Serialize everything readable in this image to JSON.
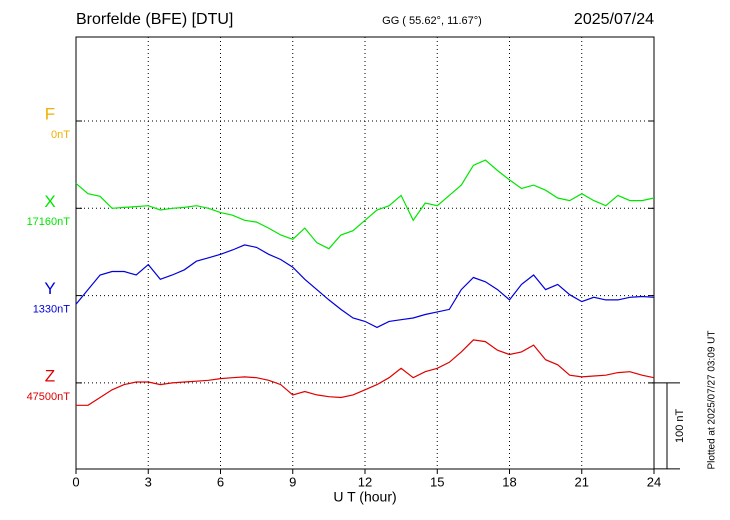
{
  "chart_data": {
    "type": "line",
    "title": "Brorfelde (BFE)  [DTU]",
    "subtitle": "GG ( 55.62°,  11.67°)",
    "date": "2025/07/24",
    "xlabel": "U T (hour)",
    "footnote": "Plotted at 2025/07/27 03:09 UT",
    "scale": {
      "value": 100,
      "label": "100 nT"
    },
    "grid": true,
    "xlim": [
      0,
      24
    ],
    "xticks": [
      0,
      3,
      6,
      9,
      12,
      15,
      18,
      21,
      24
    ],
    "x": [
      0,
      0.5,
      1,
      1.5,
      2,
      2.5,
      3,
      3.5,
      4,
      4.5,
      5,
      5.5,
      6,
      6.5,
      7,
      7.5,
      8,
      8.5,
      9,
      9.5,
      10,
      10.5,
      11,
      11.5,
      12,
      12.5,
      13,
      13.5,
      14,
      14.5,
      15,
      15.5,
      16,
      16.5,
      17,
      17.5,
      18,
      18.5,
      19,
      19.5,
      20,
      20.5,
      21,
      21.5,
      22,
      22.5,
      23,
      23.5,
      24
    ],
    "series": [
      {
        "name": "F",
        "color": "#f0b000",
        "baseline": {
          "value": 0,
          "label": "0nT"
        }
      },
      {
        "name": "X",
        "color": "#00e600",
        "baseline": {
          "value": 17160,
          "label": "17160nT"
        },
        "values": [
          17189,
          17177,
          17174,
          17160,
          17161,
          17162,
          17163,
          17158,
          17160,
          17161,
          17163,
          17160,
          17155,
          17152,
          17146,
          17144,
          17137,
          17129,
          17124,
          17137,
          17120,
          17113,
          17129,
          17134,
          17146,
          17158,
          17163,
          17175,
          17146,
          17166,
          17163,
          17175,
          17187,
          17210,
          17216,
          17204,
          17193,
          17183,
          17187,
          17181,
          17172,
          17169,
          17177,
          17169,
          17163,
          17175,
          17169,
          17169,
          17172
        ]
      },
      {
        "name": "Y",
        "color": "#0000dd",
        "baseline": {
          "value": 1330,
          "label": "1330nT"
        },
        "values": [
          1320,
          1337,
          1354,
          1358,
          1358,
          1354,
          1366,
          1349,
          1354,
          1360,
          1370,
          1374,
          1378,
          1383,
          1389,
          1386,
          1378,
          1372,
          1363,
          1349,
          1337,
          1325,
          1314,
          1304,
          1300,
          1293,
          1300,
          1302,
          1304,
          1308,
          1311,
          1314,
          1337,
          1351,
          1346,
          1337,
          1325,
          1343,
          1354,
          1337,
          1343,
          1331,
          1323,
          1328,
          1325,
          1325,
          1328,
          1329,
          1328
        ]
      },
      {
        "name": "Z",
        "color": "#e00000",
        "baseline": {
          "value": 47500,
          "label": "47500nT"
        },
        "values": [
          47474,
          47474,
          47483,
          47492,
          47498,
          47501,
          47501,
          47498,
          47500,
          47501,
          47502,
          47503,
          47505,
          47506,
          47507,
          47506,
          47503,
          47498,
          47486,
          47490,
          47486,
          47484,
          47483,
          47486,
          47492,
          47498,
          47506,
          47517,
          47506,
          47513,
          47517,
          47524,
          47536,
          47550,
          47548,
          47538,
          47533,
          47536,
          47544,
          47527,
          47521,
          47509,
          47507,
          47508,
          47509,
          47512,
          47513,
          47509,
          47506
        ]
      }
    ]
  }
}
